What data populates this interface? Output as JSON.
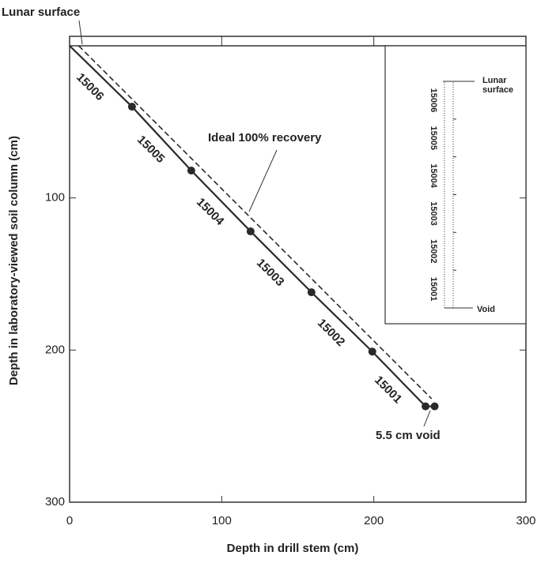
{
  "chart_data": {
    "type": "line",
    "x_label": "Depth in drill stem (cm)",
    "y_label": "Depth in laboratory-viewed soil column (cm)",
    "xlim": [
      0,
      300
    ],
    "ylim": [
      0,
      300
    ],
    "y_inverted": true,
    "xticks": [
      0,
      100,
      200,
      300
    ],
    "yticks": [
      100,
      200,
      300
    ],
    "series": [
      {
        "x": [
          0,
          41,
          80,
          119,
          159,
          199,
          234,
          240
        ],
        "values": [
          0,
          40,
          82,
          122,
          162,
          201,
          237,
          237
        ],
        "color": "#2a2a2a",
        "style": "solid",
        "markers": true
      },
      {
        "x": [
          6,
          238
        ],
        "values": [
          0,
          232
        ],
        "color": "#2a2a2a",
        "style": "dashed",
        "markers": false
      }
    ],
    "segment_labels": [
      "15006",
      "15005",
      "15004",
      "15003",
      "15002",
      "15001"
    ],
    "annotations": [
      "Lunar surface",
      "Ideal 100% recovery",
      "5.5 cm void"
    ],
    "inset": {
      "top_label": [
        "Lunar",
        "surface"
      ],
      "bottom_label": "Void",
      "labels": [
        "15006",
        "15005",
        "15004",
        "15003",
        "15002",
        "15001"
      ]
    }
  }
}
